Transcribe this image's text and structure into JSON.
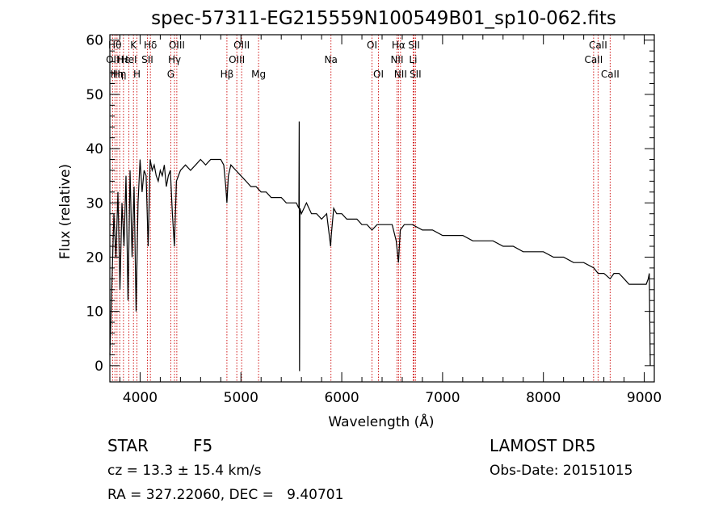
{
  "chart_data": {
    "type": "line",
    "title": "spec-57311-EG215559N100549B01_sp10-062.fits",
    "xlabel": "Wavelength (Å)",
    "ylabel": "Flux (relative)",
    "xlim": [
      3700,
      9100
    ],
    "ylim": [
      -3,
      61
    ],
    "xticks": [
      4000,
      5000,
      6000,
      7000,
      8000,
      9000
    ],
    "yticks": [
      0,
      10,
      20,
      30,
      40,
      50,
      60
    ],
    "grid": false,
    "series": [
      {
        "x": [
          3700,
          3720,
          3740,
          3760,
          3780,
          3800,
          3820,
          3840,
          3860,
          3880,
          3900,
          3920,
          3940,
          3960,
          3980,
          4000,
          4020,
          4040,
          4060,
          4080,
          4100,
          4120,
          4140,
          4160,
          4180,
          4200,
          4220,
          4240,
          4260,
          4280,
          4300,
          4320,
          4340,
          4360,
          4380,
          4400,
          4450,
          4500,
          4550,
          4600,
          4650,
          4700,
          4750,
          4800,
          4830,
          4850,
          4861,
          4875,
          4900,
          4950,
          5000,
          5050,
          5100,
          5150,
          5200,
          5250,
          5300,
          5350,
          5400,
          5450,
          5500,
          5550,
          5575,
          5578,
          5581,
          5585,
          5600,
          5650,
          5700,
          5750,
          5800,
          5850,
          5890,
          5896,
          5920,
          5950,
          6000,
          6050,
          6100,
          6150,
          6200,
          6250,
          6300,
          6350,
          6400,
          6450,
          6500,
          6540,
          6563,
          6580,
          6620,
          6700,
          6800,
          6900,
          7000,
          7100,
          7200,
          7300,
          7400,
          7500,
          7600,
          7700,
          7800,
          7900,
          8000,
          8100,
          8200,
          8300,
          8400,
          8500,
          8542,
          8600,
          8662,
          8700,
          8750,
          8800,
          8850,
          8900,
          8950,
          9000,
          9020,
          9040,
          9050,
          9060
        ],
        "y": [
          2,
          15,
          28,
          20,
          32,
          14,
          30,
          22,
          35,
          12,
          36,
          20,
          33,
          10,
          30,
          38,
          32,
          36,
          35,
          22,
          38,
          36,
          37,
          35,
          34,
          36,
          35,
          37,
          33,
          35,
          36,
          28,
          22,
          34,
          35,
          36,
          37,
          36,
          37,
          38,
          37,
          38,
          38,
          38,
          37,
          33,
          30,
          35,
          37,
          36,
          35,
          34,
          33,
          33,
          32,
          32,
          31,
          31,
          31,
          30,
          30,
          30,
          29,
          45,
          -1,
          29,
          28,
          30,
          28,
          28,
          27,
          28,
          22,
          24,
          29,
          28,
          28,
          27,
          27,
          27,
          26,
          26,
          25,
          26,
          26,
          26,
          26,
          23,
          19,
          25,
          26,
          26,
          25,
          25,
          24,
          24,
          24,
          23,
          23,
          23,
          22,
          22,
          21,
          21,
          21,
          20,
          20,
          19,
          19,
          18,
          17,
          17,
          16,
          17,
          17,
          16,
          15,
          15,
          15,
          15,
          15,
          16,
          17,
          0
        ]
      }
    ],
    "annotations": {
      "lines": [
        {
          "x": 3727,
          "label": "OII",
          "row": 1
        },
        {
          "x": 3750,
          "label": "Hθ",
          "row": 0
        },
        {
          "x": 3771,
          "label": "Hη",
          "row": 2
        },
        {
          "x": 3798,
          "label": "Hη",
          "row": 2
        },
        {
          "x": 3835,
          "label": "Hε",
          "row": 1
        },
        {
          "x": 3889,
          "label": "HeI",
          "row": 1
        },
        {
          "x": 3934,
          "label": "K",
          "row": 0
        },
        {
          "x": 3969,
          "label": "H",
          "row": 2
        },
        {
          "x": 4072,
          "label": "SII",
          "row": 1
        },
        {
          "x": 4102,
          "label": "Hδ",
          "row": 0
        },
        {
          "x": 4304,
          "label": "G",
          "row": 2
        },
        {
          "x": 4341,
          "label": "Hγ",
          "row": 1
        },
        {
          "x": 4364,
          "label": "OIII",
          "row": 0
        },
        {
          "x": 4861,
          "label": "Hβ",
          "row": 2
        },
        {
          "x": 4959,
          "label": "OIII",
          "row": 1
        },
        {
          "x": 5007,
          "label": "OIII",
          "row": 0
        },
        {
          "x": 5175,
          "label": "Mg",
          "row": 2
        },
        {
          "x": 5893,
          "label": "Na",
          "row": 1
        },
        {
          "x": 6300,
          "label": "OI",
          "row": 0
        },
        {
          "x": 6364,
          "label": "OI",
          "row": 2
        },
        {
          "x": 6548,
          "label": "NII",
          "row": 1
        },
        {
          "x": 6563,
          "label": "Hα",
          "row": 0
        },
        {
          "x": 6583,
          "label": "NII",
          "row": 2
        },
        {
          "x": 6708,
          "label": "Li",
          "row": 1
        },
        {
          "x": 6717,
          "label": "SII",
          "row": 0
        },
        {
          "x": 6731,
          "label": "SII",
          "row": 2
        },
        {
          "x": 8498,
          "label": "CaII",
          "row": 1
        },
        {
          "x": 8542,
          "label": "CaII",
          "row": 0
        },
        {
          "x": 8662,
          "label": "CaII",
          "row": 2
        }
      ],
      "color": "#cc0000"
    },
    "line_color": "#000000"
  },
  "footer": {
    "object_class": "STAR",
    "subclass": "F5",
    "survey": "LAMOST DR5",
    "cz": "cz = 13.3 ± 15.4 km/s",
    "obs_date": "Obs-Date: 20151015",
    "coords": "RA = 327.22060, DEC =   9.40701"
  }
}
